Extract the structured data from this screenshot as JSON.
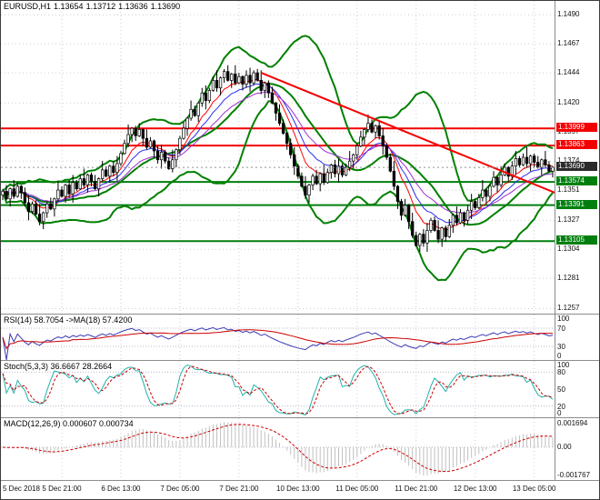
{
  "quote_bar": {
    "symbol": "EURUSD,H1",
    "open": "1.13654",
    "high": "1.13712",
    "low": "1.13636",
    "close": "1.13690"
  },
  "colors": {
    "background": "#ffffff",
    "grid": "#cfcfcf",
    "candle": "#000000",
    "bollinger": "#008000",
    "ema_fast": "#ff0000",
    "ema_mid": "#2e2ef0",
    "ema_slow": "#9f30d0",
    "resistance": "#f40000",
    "support": "#007f0e",
    "trendline": "#f40000",
    "current_price_badge": "#2b2b2b",
    "indicator_level": "#b8b8d0",
    "rsi_line": "#3c3cb4",
    "rsi_ma": "#cc0000",
    "stoch_k": "#20b2aa",
    "stoch_d": "#cc0000",
    "macd_hist": "#c0c0c0",
    "macd_signal": "#cc0000"
  },
  "time_axis": {
    "interval": 16,
    "labels": [
      "5 Dec 2018",
      "5 Dec 21:00",
      "6 Dec 13:00",
      "7 Dec 05:00",
      "7 Dec 21:00",
      "10 Dec 13:00",
      "11 Dec 05:00",
      "11 Dec 21:00",
      "12 Dec 13:00",
      "13 Dec 05:00"
    ]
  },
  "chart_data": [
    {
      "type": "candlestick",
      "title": "EURUSD,H1",
      "y_axis": {
        "min": 1.1253,
        "max": 1.1501,
        "ticks": [
          1.149,
          1.1467,
          1.1444,
          1.142,
          1.1397,
          1.1374,
          1.1351,
          1.1327,
          1.1304,
          1.1281,
          1.1257
        ]
      },
      "closes": [
        1.135,
        1.1344,
        1.1352,
        1.1346,
        1.1354,
        1.1349,
        1.1341,
        1.1334,
        1.134,
        1.1332,
        1.1326,
        1.1333,
        1.134,
        1.1336,
        1.1344,
        1.1351,
        1.1346,
        1.1355,
        1.1348,
        1.1357,
        1.1352,
        1.136,
        1.1355,
        1.1363,
        1.1358,
        1.1352,
        1.136,
        1.1367,
        1.1362,
        1.137,
        1.1365,
        1.1372,
        1.138,
        1.1388,
        1.1395,
        1.14,
        1.1394,
        1.1399,
        1.1392,
        1.1385,
        1.139,
        1.1382,
        1.1375,
        1.1381,
        1.1374,
        1.1368,
        1.1375,
        1.1383,
        1.1392,
        1.14,
        1.1408,
        1.1415,
        1.141,
        1.142,
        1.1428,
        1.1422,
        1.143,
        1.1438,
        1.1432,
        1.144,
        1.1445,
        1.1438,
        1.1443,
        1.1436,
        1.1441,
        1.1435,
        1.1442,
        1.1436,
        1.1444,
        1.1438,
        1.143,
        1.1436,
        1.1428,
        1.142,
        1.1412,
        1.1404,
        1.1396,
        1.1388,
        1.1379,
        1.137,
        1.1362,
        1.1354,
        1.1347,
        1.1355,
        1.1362,
        1.1356,
        1.1364,
        1.1357,
        1.1365,
        1.1371,
        1.1364,
        1.137,
        1.1363,
        1.1369,
        1.1374,
        1.1379,
        1.1386,
        1.1393,
        1.1399,
        1.1404,
        1.1397,
        1.1402,
        1.1394,
        1.1386,
        1.1377,
        1.1366,
        1.1354,
        1.1342,
        1.1331,
        1.1339,
        1.1326,
        1.1315,
        1.1307,
        1.1316,
        1.1309,
        1.1319,
        1.1327,
        1.1319,
        1.1312,
        1.1321,
        1.1314,
        1.1323,
        1.1331,
        1.1325,
        1.1333,
        1.1327,
        1.1335,
        1.1342,
        1.1337,
        1.1345,
        1.1351,
        1.1346,
        1.1354,
        1.1361,
        1.1355,
        1.1363,
        1.1369,
        1.1362,
        1.137,
        1.1376,
        1.1371,
        1.1377,
        1.1372,
        1.1378,
        1.1373,
        1.1369,
        1.1375,
        1.1371,
        1.1366,
        1.1369
      ],
      "wick_up_pattern": [
        2,
        5,
        1,
        7,
        3,
        1,
        4,
        6,
        2,
        3,
        8,
        1
      ],
      "wick_down_pattern": [
        4,
        1,
        6,
        2,
        1,
        5,
        3,
        7,
        2,
        1,
        3,
        6
      ],
      "overlays": {
        "bollinger": {
          "period": 20,
          "deviation": 2
        },
        "moving_averages": [
          {
            "period": 8
          },
          {
            "period": 13
          },
          {
            "period": 21
          }
        ],
        "levels": [
          {
            "price": 1.13999,
            "label": "1.13999",
            "role": "resistance"
          },
          {
            "price": 1.13863,
            "label": "1.13863",
            "role": "resistance"
          },
          {
            "price": 1.13574,
            "label": "1.13574",
            "role": "support"
          },
          {
            "price": 1.13391,
            "label": "1.13391",
            "role": "support"
          },
          {
            "price": 1.13105,
            "label": "1.13105",
            "role": "support"
          }
        ],
        "trendline": {
          "from_index": 70,
          "from_price": 1.1444,
          "to_index": 152,
          "to_price": 1.1346
        },
        "current_price": {
          "value": 1.1369,
          "label": "1.13690"
        }
      }
    },
    {
      "type": "line",
      "indicator": "RSI",
      "header": "RSI(14) 58.7054 ->MA(18) 57.4200",
      "params": {
        "period": 14,
        "ma_period": 18
      },
      "current": {
        "rsi": 58.7054,
        "ma": 57.42
      },
      "y_axis": {
        "min": 0,
        "max": 100,
        "ticks": [
          100,
          70,
          30,
          0
        ],
        "levels": [
          70,
          30
        ]
      }
    },
    {
      "type": "line",
      "indicator": "Stochastic",
      "header": "Stoch(5,3,3) 36.6667 28.2664",
      "params": {
        "k": 5,
        "d": 3,
        "slowing": 3
      },
      "current": {
        "k": 36.6667,
        "d": 28.2664
      },
      "y_axis": {
        "min": 0,
        "max": 100,
        "ticks": [
          100,
          80,
          50,
          20,
          0
        ],
        "levels": [
          80,
          20
        ]
      }
    },
    {
      "type": "macd",
      "indicator": "MACD",
      "header": "MACD(12,26,9) 0.000607 0.000734",
      "params": {
        "fast": 12,
        "slow": 26,
        "signal": 9
      },
      "current": {
        "macd": 0.000607,
        "signal": 0.000734
      },
      "y_axis": {
        "ticks": [
          "0.001694",
          "0.00",
          "-0.001767"
        ]
      }
    }
  ]
}
